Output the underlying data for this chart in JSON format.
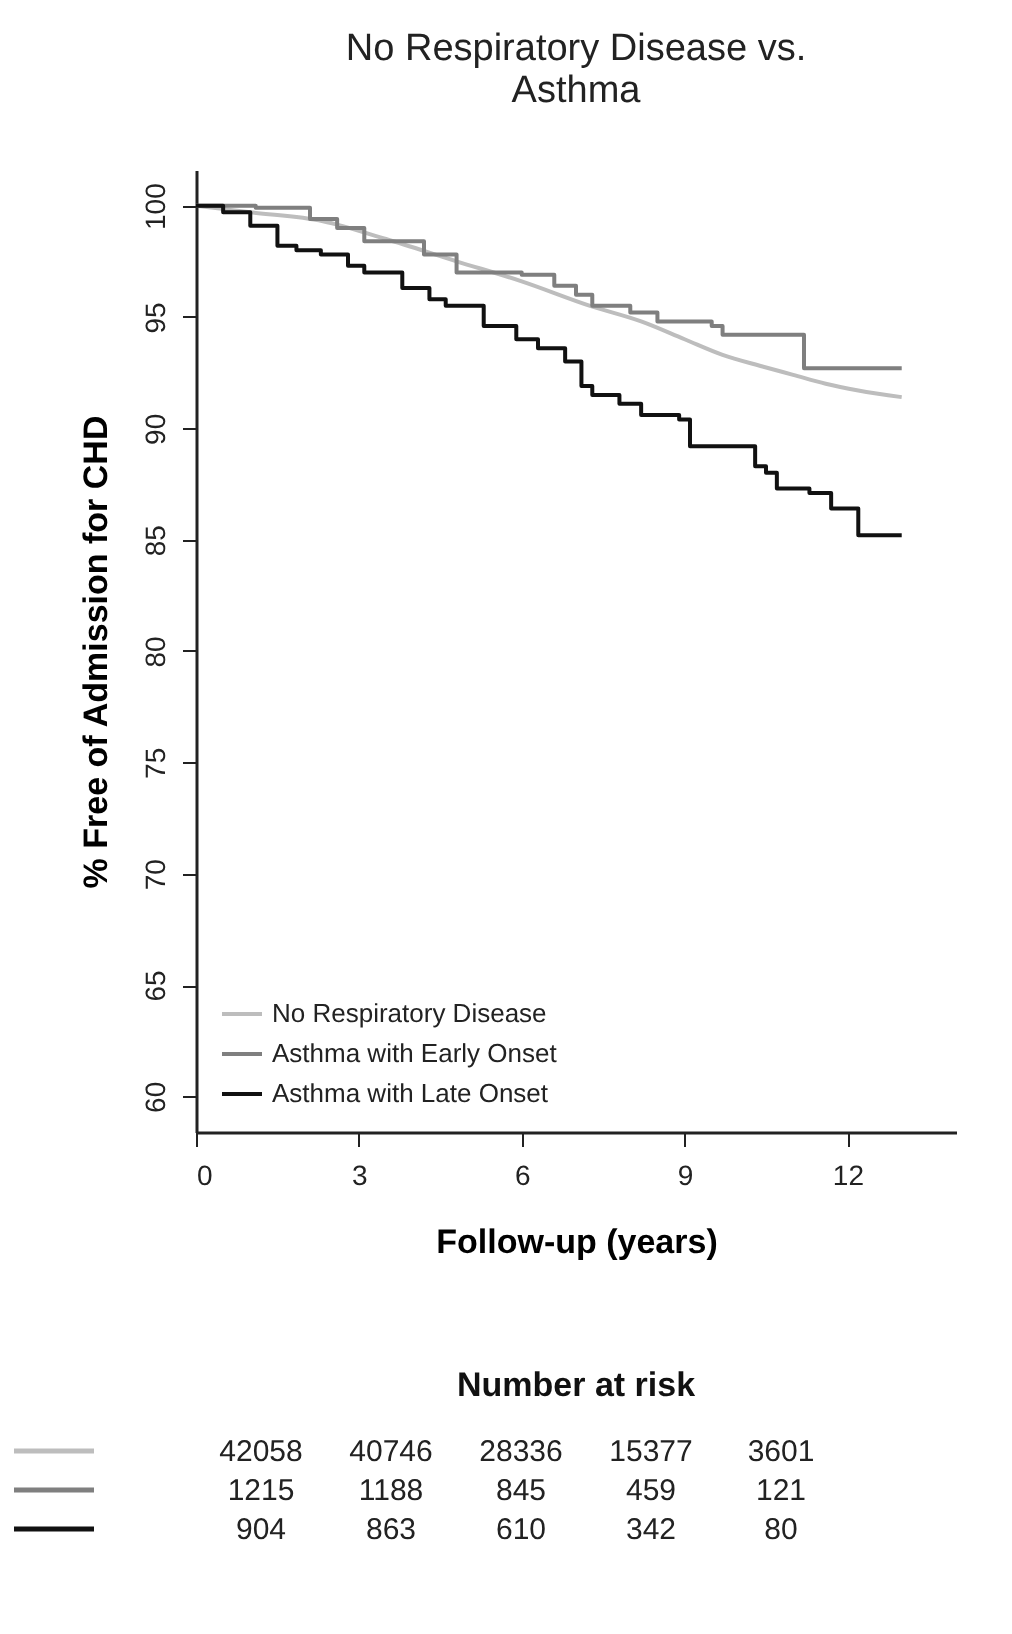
{
  "chart_data": [
    {
      "type": "step",
      "title": "No Respiratory Disease vs.\nAsthma",
      "xlabel": "Follow-up (years)",
      "ylabel": "% Free of Admission for CHD",
      "xlim": [
        0,
        14
      ],
      "xticks": [
        0,
        3,
        6,
        9,
        12
      ],
      "ylim": [
        58.4,
        101.6
      ],
      "yticks": [
        60,
        65,
        70,
        75,
        80,
        85,
        90,
        95,
        100
      ],
      "grid": false,
      "legend": "bottom left",
      "series": [
        {
          "name": "No Respiratory Disease",
          "color": "#bdbdbd",
          "type": "line",
          "x": [
            0,
            1.0,
            2.34,
            3.5,
            4.8,
            6.0,
            7.26,
            8.2,
            9.0,
            9.7,
            10.4,
            11.0,
            11.6,
            12.2,
            13.0
          ],
          "values": [
            100,
            99.7,
            99.3,
            98.5,
            97.5,
            96.6,
            95.5,
            94.8,
            94.0,
            93.3,
            92.8,
            92.4,
            92.0,
            91.7,
            91.4
          ]
        },
        {
          "name": "Asthma with Early Onset",
          "color": "#7f7f7f",
          "x": [
            0,
            1.1,
            2.1,
            2.6,
            3.1,
            4.2,
            4.8,
            6.0,
            6.6,
            7.0,
            7.3,
            8.0,
            8.5,
            9.5,
            9.7,
            11.2,
            13.0
          ],
          "values": [
            100,
            99.9,
            99.4,
            99.0,
            98.4,
            97.8,
            97.0,
            96.9,
            96.4,
            96.0,
            95.5,
            95.2,
            94.8,
            94.6,
            94.2,
            92.7,
            92.7
          ]
        },
        {
          "name": "Asthma with Late Onset",
          "color": "#111111",
          "x": [
            0,
            0.5,
            1.0,
            1.5,
            1.85,
            2.3,
            2.8,
            3.1,
            3.8,
            4.3,
            4.6,
            5.3,
            5.9,
            6.3,
            6.8,
            7.1,
            7.3,
            7.8,
            8.2,
            8.9,
            9.1,
            10.3,
            10.5,
            10.7,
            11.3,
            11.7,
            12.2,
            13.0
          ],
          "values": [
            100,
            99.7,
            99.1,
            98.2,
            98.0,
            97.8,
            97.3,
            97.0,
            96.3,
            95.8,
            95.5,
            94.6,
            94.0,
            93.6,
            93.0,
            91.9,
            91.5,
            91.1,
            90.6,
            90.4,
            89.2,
            88.3,
            88.0,
            87.3,
            87.1,
            86.4,
            85.2,
            85.2
          ]
        }
      ]
    },
    {
      "type": "other",
      "title": "Number at risk",
      "series": [
        {
          "color": "#bdbdbd"
        },
        {
          "color": "#7f7f7f"
        },
        {
          "color": "#111111"
        }
      ],
      "annotations": [
        "42058",
        "40746",
        "28336",
        "15377",
        "3601",
        "1215",
        "1188",
        "845",
        "459",
        "121",
        "904",
        "863",
        "610",
        "342",
        "80"
      ]
    }
  ]
}
